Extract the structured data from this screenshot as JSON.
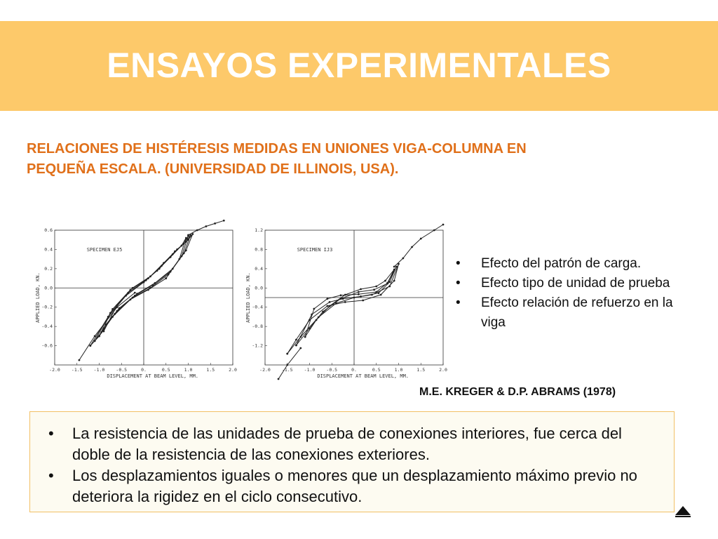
{
  "header": {
    "title": "ENSAYOS EXPERIMENTALES",
    "bg_color": "#fdc96a"
  },
  "subtitle": {
    "line1": "RELACIONES DE HISTÉRESIS MEDIDAS EN UNIONES VIGA-COLUMNA  EN",
    "line2": "PEQUEÑA ESCALA.  (UNIVERSIDAD DE ILLINOIS, USA).",
    "color": "#e0701a"
  },
  "bullets": [
    "Efecto del patrón de carga.",
    "Efecto tipo de unidad de prueba",
    "Efecto relación de refuerzo en la viga"
  ],
  "citation": "M.E. KREGER  & D.P. ABRAMS (1978)",
  "box": {
    "border_color": "#f2c065",
    "items": [
      "La resistencia de las unidades de prueba de conexiones interiores, fue cerca del doble de la resistencia de las conexiones exteriores.",
      "Los desplazamientos iguales o menores que un desplazamiento máximo previo no deteriora la rigidez en el ciclo consecutivo."
    ]
  },
  "nav": {
    "icon": "up-triangle-icon"
  },
  "chart_data": [
    {
      "type": "line",
      "title": "SPECIMEN EJ5",
      "xlabel": "DISPLACEMENT AT BEAM LEVEL, MM.",
      "ylabel": "APPLIED LOAD, KN.",
      "xlim": [
        -2.0,
        2.0
      ],
      "ylim": [
        -0.8,
        0.6
      ],
      "xticks": [
        "-2.0",
        "-1.5",
        "-1.0",
        "-0.5",
        "0.",
        "0.5",
        "1.0",
        "1.5",
        "2.0"
      ],
      "yticks": [
        "0.6",
        "0.4",
        "0.2",
        "0.0",
        "-0.2",
        "-0.4",
        "-0.6"
      ],
      "grid": true,
      "series": [
        {
          "x": [
            -1.2,
            -0.8,
            -0.4,
            0.0,
            0.3,
            0.6,
            0.85,
            0.95,
            0.8,
            0.5,
            0.1,
            -0.3,
            -0.7,
            -1.0,
            -1.2
          ],
          "y": [
            -0.6,
            -0.3,
            -0.08,
            0.06,
            0.18,
            0.32,
            0.44,
            0.52,
            0.3,
            0.1,
            -0.02,
            -0.12,
            -0.3,
            -0.5,
            -0.6
          ]
        },
        {
          "x": [
            -1.1,
            -0.75,
            -0.35,
            0.05,
            0.35,
            0.65,
            0.9,
            1.0,
            0.85,
            0.55,
            0.15,
            -0.25,
            -0.65,
            -0.95,
            -1.1
          ],
          "y": [
            -0.55,
            -0.26,
            -0.05,
            0.08,
            0.2,
            0.35,
            0.46,
            0.54,
            0.33,
            0.14,
            0.0,
            -0.1,
            -0.27,
            -0.46,
            -0.55
          ]
        },
        {
          "x": [
            -1.0,
            -0.7,
            -0.3,
            0.1,
            0.4,
            0.7,
            0.95,
            1.05,
            0.9,
            0.6,
            0.2,
            -0.2,
            -0.6,
            -0.9,
            -1.0
          ],
          "y": [
            -0.5,
            -0.22,
            -0.02,
            0.1,
            0.23,
            0.38,
            0.48,
            0.55,
            0.36,
            0.17,
            0.03,
            -0.08,
            -0.24,
            -0.42,
            -0.5
          ]
        },
        {
          "x": [
            -0.9,
            -0.6,
            -0.25,
            0.15,
            0.45,
            0.75,
            1.0,
            1.1,
            0.95,
            0.65,
            0.25,
            -0.15,
            -0.55,
            -0.85,
            -0.9
          ],
          "y": [
            -0.45,
            -0.18,
            0.0,
            0.12,
            0.26,
            0.4,
            0.5,
            0.56,
            0.39,
            0.2,
            0.05,
            -0.06,
            -0.21,
            -0.38,
            -0.45
          ]
        },
        {
          "x": [
            -1.45,
            -1.1,
            -0.6,
            -0.2
          ],
          "y": [
            -0.75,
            -0.5,
            -0.2,
            -0.05
          ]
        },
        {
          "x": [
            1.0,
            1.2,
            1.4,
            1.6,
            1.8
          ],
          "y": [
            0.55,
            0.6,
            0.64,
            0.67,
            0.7
          ]
        }
      ]
    },
    {
      "type": "line",
      "title": "SPECIMEN IJ3",
      "xlabel": "DISPLACEMENT AT BEAM LEVEL, MM.",
      "ylabel": "APPLIED LOAD, KN.",
      "xlim": [
        -2.0,
        2.0
      ],
      "ylim": [
        -1.2,
        1.2
      ],
      "xticks": [
        "-2.0",
        "-1.5",
        "-1.0",
        "-0.5",
        "0.",
        "0.5",
        "1.0",
        "1.5",
        "2.0"
      ],
      "yticks": [
        "1.2",
        "0.8",
        "0.4",
        "0.0",
        "-0.4",
        "-0.8",
        "-1.2"
      ],
      "grid": true,
      "series": [
        {
          "x": [
            -1.5,
            -1.2,
            -0.8,
            -0.4,
            0.0,
            0.4,
            0.8,
            1.0,
            0.9,
            0.6,
            0.2,
            -0.2,
            -0.6,
            -1.0,
            -1.3,
            -1.5
          ],
          "y": [
            -1.0,
            -0.7,
            -0.35,
            -0.1,
            0.0,
            0.05,
            0.2,
            0.6,
            0.3,
            0.05,
            -0.05,
            -0.08,
            -0.15,
            -0.4,
            -0.75,
            -1.0
          ]
        },
        {
          "x": [
            -1.3,
            -1.0,
            -0.7,
            -0.3,
            0.1,
            0.45,
            0.75,
            0.95,
            0.8,
            0.55,
            0.15,
            -0.25,
            -0.55,
            -0.95,
            -1.3
          ],
          "y": [
            -0.85,
            -0.55,
            -0.25,
            -0.02,
            0.1,
            0.14,
            0.25,
            0.55,
            0.28,
            0.08,
            0.02,
            -0.02,
            -0.08,
            -0.3,
            -0.85
          ]
        },
        {
          "x": [
            -1.1,
            -0.85,
            -0.55,
            -0.2,
            0.15,
            0.5,
            0.7,
            0.9,
            0.75,
            0.5,
            0.1,
            -0.3,
            -0.6,
            -0.9,
            -1.1
          ],
          "y": [
            -0.7,
            -0.4,
            -0.15,
            0.05,
            0.15,
            0.2,
            0.3,
            0.5,
            0.26,
            0.1,
            0.06,
            0.04,
            -0.02,
            -0.2,
            -0.7
          ]
        },
        {
          "x": [
            -1.7,
            -1.5,
            -1.2
          ],
          "y": [
            -1.45,
            -1.2,
            -0.9
          ]
        },
        {
          "x": [
            0.9,
            1.1,
            1.3,
            1.5,
            1.8,
            2.0
          ],
          "y": [
            0.55,
            0.7,
            0.9,
            1.05,
            1.2,
            1.3
          ]
        }
      ]
    }
  ]
}
